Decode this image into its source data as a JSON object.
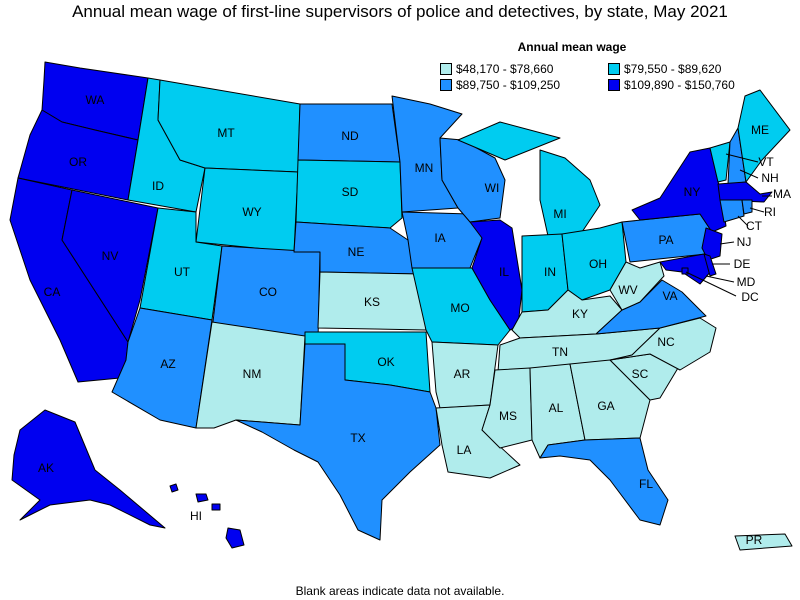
{
  "title": "Annual mean wage of first-line supervisors of police and detectives, by state, May 2021",
  "legend": {
    "title": "Annual mean wage",
    "bins": [
      {
        "label": "$48,170 - $78,660",
        "color": "#b0ecec"
      },
      {
        "label": "$79,550 - $89,620",
        "color": "#00ccf0"
      },
      {
        "label": "$89,750 - $109,250",
        "color": "#2090ff"
      },
      {
        "label": "$109,890 - $150,760",
        "color": "#0000f0"
      }
    ]
  },
  "footnote": "Blank areas indicate data not available.",
  "states": {
    "WA": 3,
    "OR": 3,
    "CA": 3,
    "NV": 3,
    "ID": 1,
    "MT": 1,
    "WY": 1,
    "UT": 1,
    "AZ": 2,
    "CO": 2,
    "NM": 0,
    "ND": 2,
    "SD": 1,
    "NE": 2,
    "KS": 0,
    "OK": 1,
    "TX": 2,
    "MN": 2,
    "IA": 2,
    "MO": 1,
    "AR": 0,
    "LA": 0,
    "WI": 2,
    "IL": 3,
    "MI": 1,
    "IN": 1,
    "OH": 1,
    "KY": 0,
    "TN": 0,
    "MS": 0,
    "AL": 0,
    "GA": 0,
    "FL": 2,
    "SC": 0,
    "NC": 0,
    "VA": 2,
    "WV": 0,
    "PA": 2,
    "NY": 3,
    "VT": 1,
    "NH": 2,
    "ME": 1,
    "MA": 3,
    "RI": 2,
    "CT": 2,
    "NJ": 3,
    "DE": 3,
    "MD": 3,
    "DC": 3,
    "AK": 3,
    "HI": 3,
    "PR": 0
  }
}
